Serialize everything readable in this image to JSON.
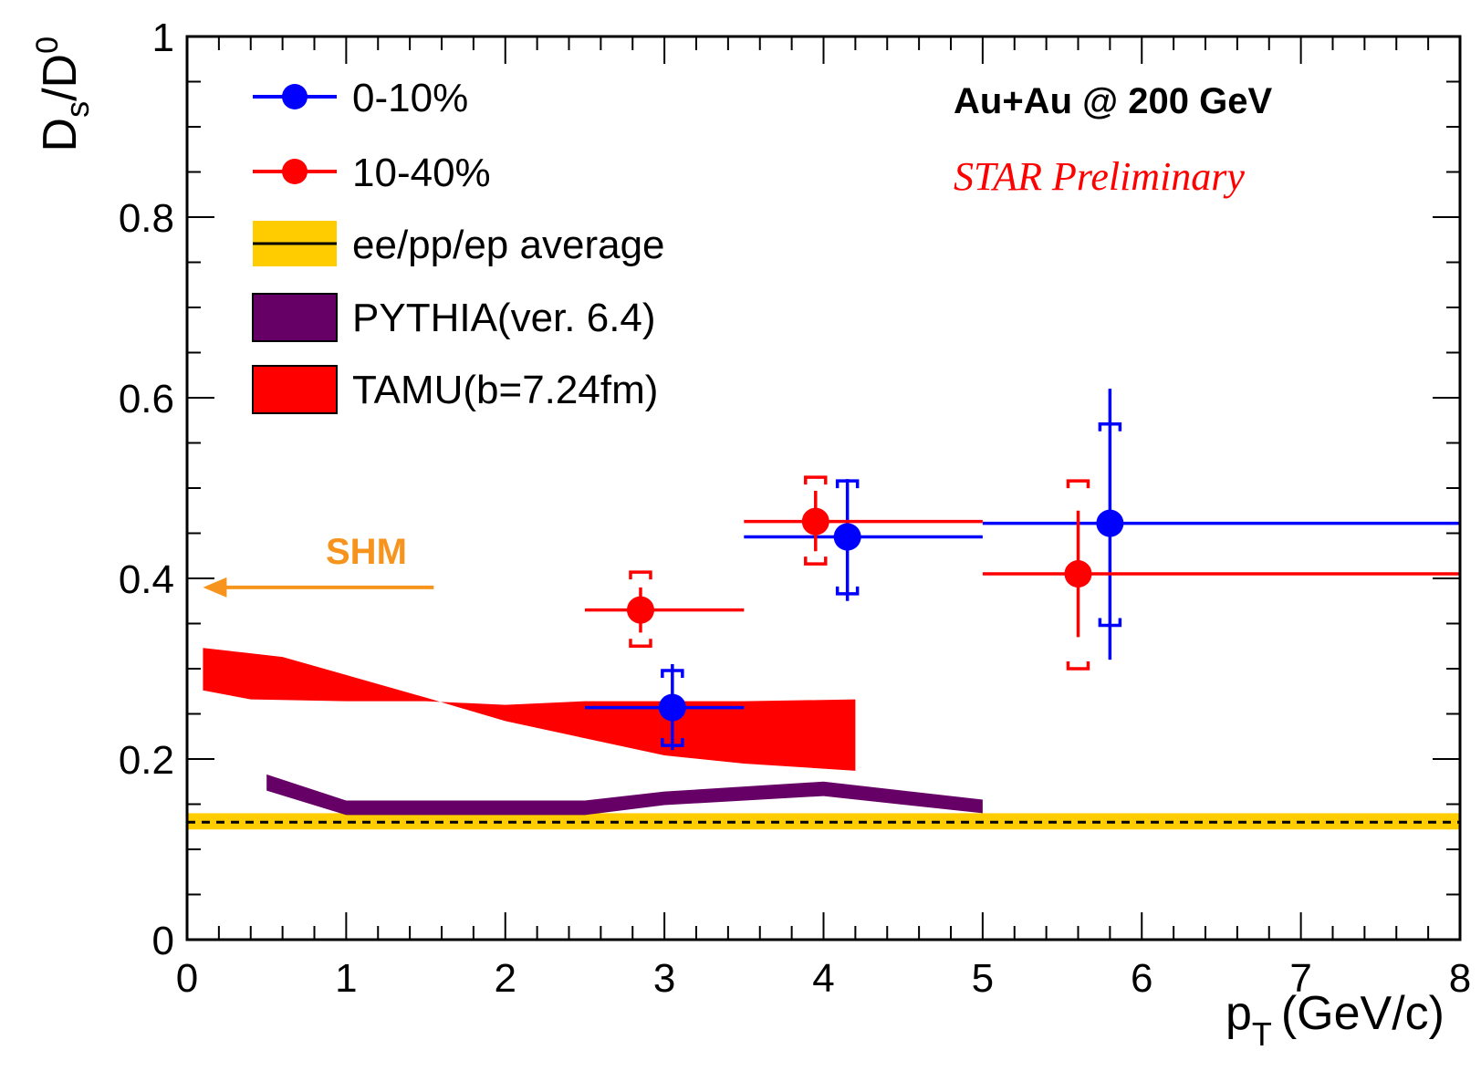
{
  "chart_data": {
    "type": "scatter",
    "title": "Au+Au @ 200 GeV",
    "subtitle": "STAR Preliminary",
    "xlabel_main": "p",
    "xlabel_sub": "T",
    "xlabel_unit": "(GeV/c)",
    "ylabel_main": "D",
    "ylabel_sub": "s",
    "ylabel_rest": "/D",
    "ylabel_sup": "0",
    "xlim": [
      0,
      8
    ],
    "ylim": [
      0,
      1
    ],
    "xticks": [
      0,
      1,
      2,
      3,
      4,
      5,
      6,
      7,
      8
    ],
    "xtick_labels": [
      "0",
      "1",
      "2",
      "3",
      "4",
      "5",
      "6",
      "7",
      "8"
    ],
    "yticks": [
      0,
      0.2,
      0.4,
      0.6,
      0.8,
      1
    ],
    "ytick_labels": [
      "0",
      "0.2",
      "0.4",
      "0.6",
      "0.8",
      "1"
    ],
    "series": [
      {
        "name": "0-10%",
        "color": "#0000ff",
        "points": [
          {
            "x": 3.05,
            "y": 0.257,
            "xlo": 2.5,
            "xhi": 3.5,
            "stat_lo": 0.21,
            "stat_hi": 0.305,
            "sys_lo": 0.215,
            "sys_hi": 0.298
          },
          {
            "x": 4.15,
            "y": 0.446,
            "xlo": 3.5,
            "xhi": 5.0,
            "stat_lo": 0.375,
            "stat_hi": 0.51,
            "sys_lo": 0.383,
            "sys_hi": 0.508
          },
          {
            "x": 5.8,
            "y": 0.461,
            "xlo": 5.0,
            "xhi": 8.0,
            "stat_lo": 0.31,
            "stat_hi": 0.61,
            "sys_lo": 0.348,
            "sys_hi": 0.571
          }
        ]
      },
      {
        "name": "10-40%",
        "color": "#ff0000",
        "points": [
          {
            "x": 2.85,
            "y": 0.365,
            "xlo": 2.5,
            "xhi": 3.5,
            "stat_lo": 0.34,
            "stat_hi": 0.39,
            "sys_lo": 0.325,
            "sys_hi": 0.407
          },
          {
            "x": 3.95,
            "y": 0.463,
            "xlo": 3.5,
            "xhi": 5.0,
            "stat_lo": 0.43,
            "stat_hi": 0.497,
            "sys_lo": 0.416,
            "sys_hi": 0.512
          },
          {
            "x": 5.6,
            "y": 0.405,
            "xlo": 5.0,
            "xhi": 8.0,
            "stat_lo": 0.335,
            "stat_hi": 0.475,
            "sys_lo": 0.3,
            "sys_hi": 0.508
          }
        ]
      }
    ],
    "ee_pp_ep_average": {
      "name": "ee/pp/ep average",
      "value": 0.13,
      "band_lo": 0.122,
      "band_hi": 0.14,
      "band_color": "#ffcc00"
    },
    "pythia": {
      "name": "PYTHIA(ver. 6.4)",
      "color": "#660066",
      "upper": [
        [
          0.5,
          0.183
        ],
        [
          1.0,
          0.154
        ],
        [
          2.5,
          0.154
        ],
        [
          3.0,
          0.164
        ],
        [
          4.0,
          0.175
        ],
        [
          5.0,
          0.155
        ]
      ],
      "lower": [
        [
          0.5,
          0.165
        ],
        [
          1.0,
          0.138
        ],
        [
          2.5,
          0.138
        ],
        [
          3.0,
          0.149
        ],
        [
          4.0,
          0.159
        ],
        [
          5.0,
          0.14
        ]
      ]
    },
    "tamu": {
      "name": "TAMU(b=7.24fm)",
      "color": "#ff0000",
      "upper": [
        [
          0.1,
          0.323
        ],
        [
          0.35,
          0.318
        ],
        [
          0.6,
          0.313
        ],
        [
          1.0,
          0.293
        ],
        [
          1.5,
          0.268
        ],
        [
          2.0,
          0.242
        ],
        [
          2.5,
          0.223
        ],
        [
          3.0,
          0.204
        ],
        [
          3.5,
          0.195
        ],
        [
          4.2,
          0.187
        ]
      ],
      "lower": [
        [
          0.1,
          0.276
        ],
        [
          0.4,
          0.266
        ],
        [
          1.0,
          0.264
        ],
        [
          1.5,
          0.264
        ],
        [
          2.0,
          0.26
        ],
        [
          2.5,
          0.264
        ],
        [
          3.0,
          0.264
        ],
        [
          3.5,
          0.264
        ],
        [
          4.2,
          0.266
        ]
      ]
    },
    "shm": {
      "label": "SHM",
      "value": 0.39,
      "arrow_from_x": 1.55,
      "arrow_to_x": 0.1,
      "color": "#f7941d"
    }
  }
}
